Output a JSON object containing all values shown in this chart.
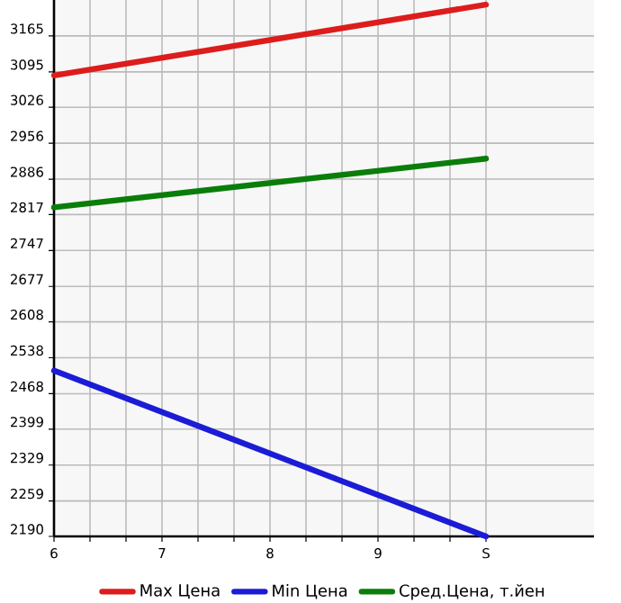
{
  "chart_data": {
    "type": "line",
    "x": [
      6,
      10
    ],
    "series": [
      {
        "name": "Max Цена",
        "color": "#dd1c1c",
        "values": [
          3088,
          3226
        ]
      },
      {
        "name": "Min Цена",
        "color": "#1c1cd6",
        "values": [
          2513,
          2190
        ]
      },
      {
        "name": "Сред.Цена, т.йен",
        "color": "#0a7d0a",
        "values": [
          2831,
          2926
        ]
      }
    ],
    "xlim": [
      6,
      11
    ],
    "xticks": [
      6,
      7,
      8,
      9,
      {
        "value": 10,
        "label": "S"
      }
    ],
    "ylim": [
      2190,
      3235
    ],
    "yticks": [
      2190,
      2259,
      2329,
      2399,
      2468,
      2538,
      2608,
      2677,
      2747,
      2817,
      2886,
      2956,
      3026,
      3095,
      3165
    ],
    "grid": true,
    "legend": "bottom",
    "marker": "none",
    "line_style": "solid"
  }
}
